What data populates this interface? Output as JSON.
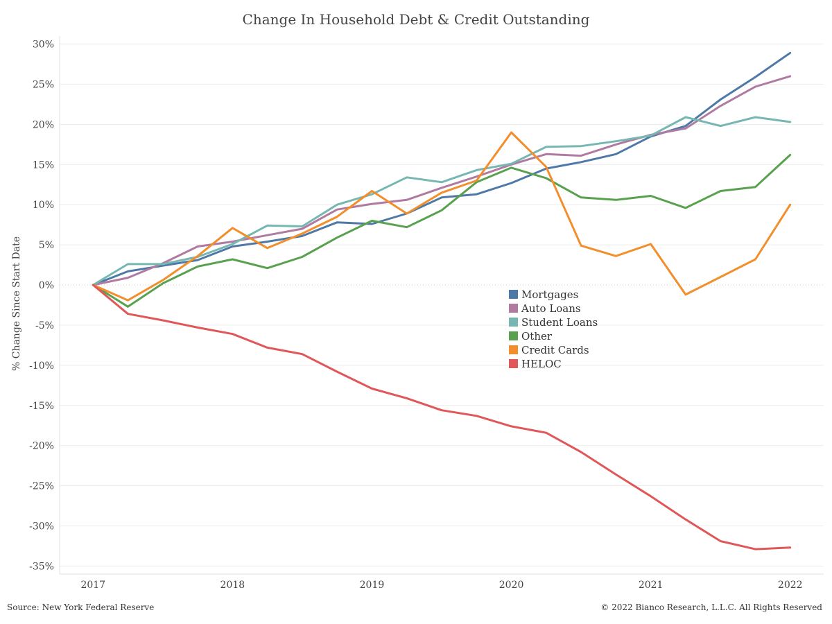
{
  "title": "Change In Household Debt & Credit Outstanding",
  "source": "Source: New York Federal Reserve",
  "copyright": "© 2022 Bianco Research, L.L.C. All Rights Reserved",
  "chart_data": {
    "type": "line",
    "title": "Change In Household Debt & Credit Outstanding",
    "xlabel": "",
    "ylabel": "% Change Since Start Date",
    "x_ticks": [
      "2017",
      "2018",
      "2019",
      "2020",
      "2021",
      "2022"
    ],
    "x": [
      2017.0,
      2017.25,
      2017.5,
      2017.75,
      2018.0,
      2018.25,
      2018.5,
      2018.75,
      2019.0,
      2019.25,
      2019.5,
      2019.75,
      2020.0,
      2020.25,
      2020.5,
      2020.75,
      2021.0,
      2021.25,
      2021.5,
      2021.75,
      2022.0
    ],
    "xlim": [
      2016.76,
      2022.24
    ],
    "ylim": [
      -36,
      31
    ],
    "y_ticks": [
      30,
      25,
      20,
      15,
      10,
      5,
      0,
      -5,
      -10,
      -15,
      -20,
      -25,
      -30,
      -35
    ],
    "y_tick_labels": [
      "30%",
      "25%",
      "20%",
      "15%",
      "10%",
      "5%",
      "0%",
      "-5%",
      "-10%",
      "-15%",
      "-20%",
      "-25%",
      "-30%",
      "-35%"
    ],
    "grid": true,
    "zero_line": "dotted",
    "legend_placement": "center-right",
    "series": [
      {
        "name": "Mortgages",
        "color": "#4e79a7",
        "values": [
          0,
          1.7,
          2.4,
          3.1,
          4.8,
          5.4,
          6.1,
          7.8,
          7.6,
          8.9,
          10.9,
          11.3,
          12.7,
          14.5,
          15.3,
          16.3,
          18.5,
          19.8,
          23.1,
          25.9,
          28.9
        ]
      },
      {
        "name": "Auto Loans",
        "color": "#b07aa1",
        "values": [
          0,
          0.9,
          2.7,
          4.8,
          5.4,
          6.2,
          7.0,
          9.4,
          10.1,
          10.6,
          12.1,
          13.5,
          15.0,
          16.3,
          16.1,
          17.5,
          18.7,
          19.5,
          22.3,
          24.7,
          26.0
        ]
      },
      {
        "name": "Student Loans",
        "color": "#76b7b2",
        "values": [
          0,
          2.6,
          2.6,
          3.5,
          5.1,
          7.4,
          7.3,
          10.0,
          11.3,
          13.4,
          12.8,
          14.3,
          15.1,
          17.2,
          17.3,
          17.9,
          18.6,
          20.9,
          19.8,
          20.9,
          20.3
        ]
      },
      {
        "name": "Other",
        "color": "#59a14f",
        "values": [
          0,
          -2.7,
          0.2,
          2.3,
          3.2,
          2.1,
          3.5,
          5.9,
          8.0,
          7.2,
          9.3,
          12.8,
          14.6,
          13.3,
          10.9,
          10.6,
          11.1,
          9.6,
          11.7,
          12.2,
          16.2
        ]
      },
      {
        "name": "Credit Cards",
        "color": "#f28e2b",
        "values": [
          0,
          -1.9,
          0.6,
          3.6,
          7.1,
          4.6,
          6.4,
          8.5,
          11.7,
          8.9,
          11.5,
          13.0,
          19.0,
          14.7,
          4.9,
          3.6,
          5.1,
          -1.2,
          1.0,
          3.2,
          10.0
        ]
      },
      {
        "name": "HELOC",
        "color": "#e15759",
        "values": [
          0,
          -3.6,
          -4.4,
          -5.3,
          -6.1,
          -7.8,
          -8.6,
          -10.8,
          -12.9,
          -14.1,
          -15.6,
          -16.3,
          -17.6,
          -18.4,
          -20.8,
          -23.6,
          -26.3,
          -29.2,
          -31.9,
          -32.9,
          -32.7
        ]
      }
    ]
  }
}
